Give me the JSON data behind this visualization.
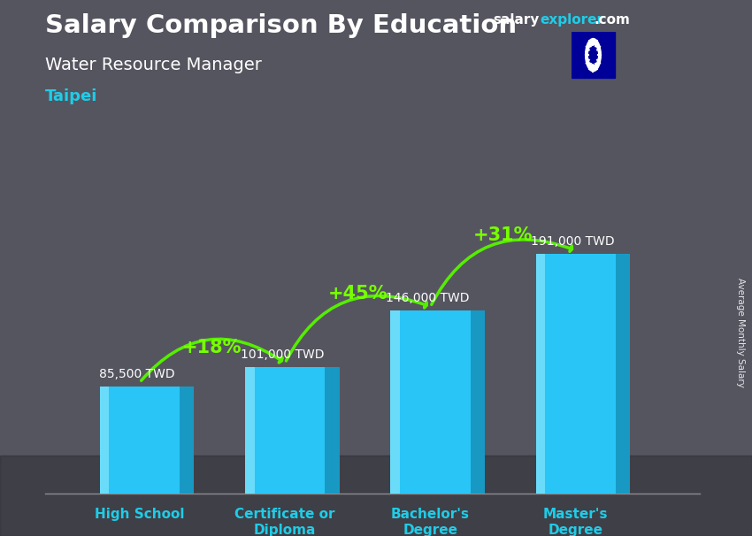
{
  "title": "Salary Comparison By Education",
  "subtitle1": "Water Resource Manager",
  "subtitle2": "Taipei",
  "ylabel_rotated": "Average Monthly Salary",
  "categories": [
    "High School",
    "Certificate or\nDiploma",
    "Bachelor's\nDegree",
    "Master's\nDegree"
  ],
  "values": [
    85500,
    101000,
    146000,
    191000
  ],
  "labels": [
    "85,500 TWD",
    "101,000 TWD",
    "146,000 TWD",
    "191,000 TWD"
  ],
  "pct_data": [
    {
      "from": 0,
      "to": 1,
      "label": "+18%"
    },
    {
      "from": 1,
      "to": 2,
      "label": "+45%"
    },
    {
      "from": 2,
      "to": 3,
      "label": "+31%"
    }
  ],
  "bar_main_color": "#29C5F6",
  "bar_left_color": "#72DFFB",
  "bar_right_color": "#1899C4",
  "bar_top_color": "#50D0F8",
  "bg_color": "#555560",
  "title_color": "#ffffff",
  "subtitle1_color": "#ffffff",
  "subtitle2_color": "#1ECDE8",
  "xlabel_color": "#1ECDE8",
  "label_color": "#ffffff",
  "pct_color": "#77ff00",
  "arrow_color": "#55ee00",
  "salary_color": "#ffffff",
  "explorer_color": "#1ECDE8",
  "bar_width": 0.55,
  "ylim": [
    0,
    240000
  ],
  "figsize": [
    8.5,
    6.06
  ],
  "dpi": 100,
  "bar_positions": [
    0,
    1,
    2,
    3
  ]
}
